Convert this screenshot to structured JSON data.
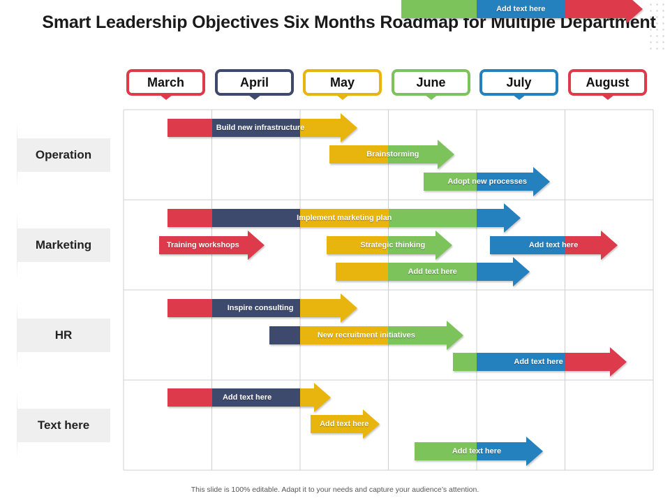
{
  "title": "Smart Leadership Objectives Six Months Roadmap for Multiple Department",
  "footer": "This slide is 100% editable. Adapt it to your needs and capture your audience’s attention.",
  "colors": {
    "red": "#dd3b4c",
    "navy": "#3d4a6d",
    "yellow": "#e8b40e",
    "green": "#7cc35c",
    "blue": "#2581be"
  },
  "months": [
    {
      "label": "March",
      "color": "#dd3b4c"
    },
    {
      "label": "April",
      "color": "#3d4a6d"
    },
    {
      "label": "May",
      "color": "#e8b40e"
    },
    {
      "label": "June",
      "color": "#7cc35c"
    },
    {
      "label": "July",
      "color": "#2581be"
    },
    {
      "label": "August",
      "color": "#dd3b4c"
    }
  ],
  "departments": [
    {
      "name": "Operation",
      "tasks": [
        {
          "label": "Build new infrastructure",
          "start": 0.5,
          "end": 2.65,
          "label_pos": 1.55,
          "segments": [
            "red",
            "navy",
            "yellow"
          ],
          "head": "yellow"
        },
        {
          "label": "Brainstorming",
          "start": 2.33,
          "end": 3.75,
          "label_pos": 3.05,
          "segments": [
            "yellow",
            "green"
          ],
          "head": "green"
        },
        {
          "label": "Adopt new processes",
          "start": 3.4,
          "end": 4.83,
          "label_pos": 4.12,
          "segments": [
            "green",
            "blue"
          ],
          "head": "blue"
        }
      ]
    },
    {
      "name": "Marketing",
      "tasks": [
        {
          "label": "Implement marketing plan",
          "start": 0.5,
          "end": 4.5,
          "label_pos": 2.5,
          "segments": [
            "red",
            "navy",
            "yellow",
            "green",
            "blue"
          ],
          "head": "blue"
        },
        {
          "label": "Training workshops",
          "start": 0.4,
          "end": 1.6,
          "label_pos": 0.9,
          "segments": [
            "red"
          ],
          "head": "red"
        },
        {
          "label": "Strategic thinking",
          "start": 2.3,
          "end": 3.72,
          "label_pos": 3.05,
          "segments": [
            "yellow",
            "green"
          ],
          "head": "green"
        },
        {
          "label": "Add text here",
          "start": 4.15,
          "end": 5.6,
          "label_pos": 4.87,
          "segments": [
            "blue",
            "red"
          ],
          "head": "red"
        },
        {
          "label": "Add text here",
          "start": 2.4,
          "end": 4.6,
          "label_pos": 3.5,
          "segments": [
            "yellow",
            "green",
            "blue"
          ],
          "head": "blue"
        }
      ]
    },
    {
      "name": "HR",
      "tasks": [
        {
          "label": "Inspire consulting",
          "start": 0.5,
          "end": 2.65,
          "label_pos": 1.55,
          "segments": [
            "red",
            "navy",
            "yellow"
          ],
          "head": "yellow"
        },
        {
          "label": "New recruitment initiatives",
          "start": 1.65,
          "end": 3.85,
          "label_pos": 2.75,
          "segments": [
            "navy",
            "yellow",
            "green"
          ],
          "head": "green"
        },
        {
          "label": "Add text here",
          "start": 3.73,
          "end": 5.7,
          "label_pos": 4.7,
          "segments": [
            "green",
            "blue",
            "red"
          ],
          "head": "red"
        }
      ]
    },
    {
      "name": "Text here",
      "tasks": [
        {
          "label": "Add text here",
          "start": 0.5,
          "end": 2.35,
          "label_pos": 1.4,
          "segments": [
            "red",
            "navy",
            "yellow"
          ],
          "head": "yellow"
        },
        {
          "label": "Add text here",
          "start": 2.12,
          "end": 2.9,
          "label_pos": 2.5,
          "segments": [
            "yellow"
          ],
          "head": "yellow"
        },
        {
          "label": "Add text here",
          "start": 3.3,
          "end": 4.75,
          "label_pos": 4.0,
          "segments": [
            "green",
            "blue"
          ],
          "head": "blue"
        },
        {
          "label": "Add text here",
          "start": 3.15,
          "end": 5.88,
          "label_pos": 4.5,
          "segments": [
            "green",
            "blue",
            "red"
          ],
          "head": "red"
        }
      ]
    }
  ]
}
